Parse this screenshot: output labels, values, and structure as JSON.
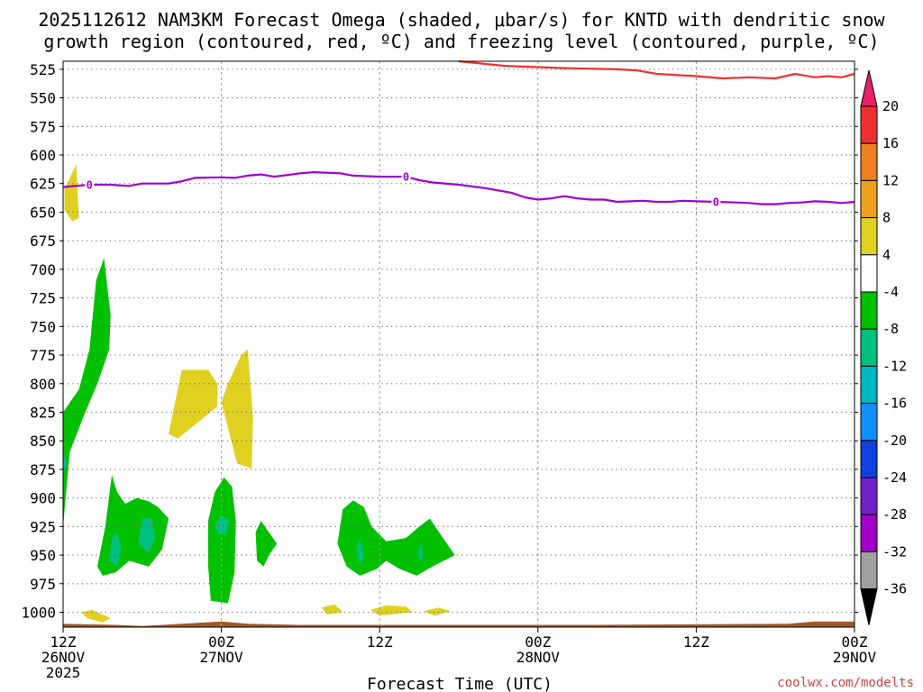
{
  "chart_data": {
    "type": "heatmap",
    "title_line1": "2025112612 NAM3KM Forecast Omega (shaded, μbar/s) for KNTD with dendritic snow",
    "title_line2": "growth region (contoured, red, ºC) and freezing level (contoured, purple, ºC)",
    "xlabel": "Forecast Time (UTC)",
    "credit": "coolwx.com/modelts",
    "y_axis": {
      "ticks": [
        525,
        550,
        575,
        600,
        625,
        650,
        675,
        700,
        725,
        750,
        775,
        800,
        825,
        850,
        875,
        900,
        925,
        950,
        975,
        1000
      ],
      "ylim": [
        518,
        1013
      ],
      "grid": true
    },
    "x_axis": {
      "xlim": [
        0,
        60
      ],
      "ticks": [
        {
          "hour": 0,
          "l1": "12Z",
          "l2": "26NOV",
          "l3": "2025"
        },
        {
          "hour": 12,
          "l1": "00Z",
          "l2": "27NOV",
          "l3": ""
        },
        {
          "hour": 24,
          "l1": "12Z",
          "l2": "",
          "l3": ""
        },
        {
          "hour": 36,
          "l1": "00Z",
          "l2": "28NOV",
          "l3": ""
        },
        {
          "hour": 48,
          "l1": "12Z",
          "l2": "",
          "l3": ""
        },
        {
          "hour": 60,
          "l1": "00Z",
          "l2": "29NOV",
          "l3": ""
        }
      ],
      "grid": true
    },
    "colorbar": {
      "labels": [
        "20",
        "16",
        "12",
        "8",
        "4",
        "-4",
        "-8",
        "-12",
        "-16",
        "-20",
        "-24",
        "-28",
        "-32",
        "-36"
      ],
      "bins": [
        {
          "color": "#e8206b"
        },
        {
          "color": "#f03030"
        },
        {
          "color": "#f08020"
        },
        {
          "color": "#f0a020"
        },
        {
          "color": "#e0d020"
        },
        {
          "color": "#ffffff"
        },
        {
          "color": "#00c000"
        },
        {
          "color": "#00c080"
        },
        {
          "color": "#00b8c0"
        },
        {
          "color": "#1090ff"
        },
        {
          "color": "#1040e0"
        },
        {
          "color": "#7020c8"
        },
        {
          "color": "#a000c8"
        },
        {
          "color": "#a0a0a0"
        },
        {
          "color": "#000000"
        }
      ]
    },
    "series": [
      {
        "kind": "contour",
        "color": "#f03030",
        "points": [
          [
            30,
            518
          ],
          [
            33.5,
            522
          ],
          [
            38,
            524
          ],
          [
            42,
            525
          ],
          [
            43.5,
            526
          ],
          [
            45,
            529
          ],
          [
            48,
            531
          ],
          [
            50,
            533
          ],
          [
            52,
            532
          ],
          [
            54,
            533
          ],
          [
            55.5,
            529
          ],
          [
            57,
            532
          ],
          [
            58,
            531
          ],
          [
            59,
            532
          ],
          [
            60,
            529
          ]
        ]
      },
      {
        "kind": "contour",
        "color": "#9c00d0",
        "label": "0",
        "label_hours": [
          2,
          26,
          49.5
        ],
        "points": [
          [
            0,
            628
          ],
          [
            2,
            626
          ],
          [
            3.5,
            626
          ],
          [
            5,
            627
          ],
          [
            6,
            625
          ],
          [
            8,
            625
          ],
          [
            9,
            623
          ],
          [
            10,
            620
          ],
          [
            12,
            619.5
          ],
          [
            13,
            620
          ],
          [
            14,
            618
          ],
          [
            15,
            617
          ],
          [
            16,
            619
          ],
          [
            18,
            616
          ],
          [
            19,
            615
          ],
          [
            21,
            616
          ],
          [
            22,
            618
          ],
          [
            24,
            619
          ],
          [
            26,
            619
          ],
          [
            27,
            622
          ],
          [
            28,
            624
          ],
          [
            30,
            626
          ],
          [
            32,
            629
          ],
          [
            34,
            633
          ],
          [
            35,
            637
          ],
          [
            36,
            639
          ],
          [
            37,
            638
          ],
          [
            38,
            636
          ],
          [
            39,
            638
          ],
          [
            40,
            639
          ],
          [
            41,
            639
          ],
          [
            42,
            641
          ],
          [
            43,
            640.5
          ],
          [
            44,
            640
          ],
          [
            45,
            641
          ],
          [
            46,
            641
          ],
          [
            47,
            640
          ],
          [
            48,
            640.5
          ],
          [
            49.5,
            641
          ],
          [
            51,
            641.5
          ],
          [
            52,
            642
          ],
          [
            53,
            643
          ],
          [
            54,
            643
          ],
          [
            55,
            642
          ],
          [
            56,
            641.5
          ],
          [
            57,
            640.5
          ],
          [
            58,
            641
          ],
          [
            59,
            642
          ],
          [
            60,
            641
          ]
        ]
      }
    ],
    "regions": [
      {
        "level": "4",
        "color": "#e0d020",
        "points": [
          [
            0.1,
            630
          ],
          [
            1.0,
            608
          ],
          [
            1.1,
            633
          ],
          [
            1.2,
            655
          ],
          [
            0.7,
            658
          ],
          [
            0.1,
            648
          ]
        ]
      },
      {
        "level": "4",
        "color": "#e0d020",
        "points": [
          [
            8.0,
            844
          ],
          [
            9.0,
            788
          ],
          [
            11.0,
            788
          ],
          [
            11.7,
            800
          ],
          [
            11.7,
            820
          ],
          [
            10.0,
            836
          ],
          [
            8.7,
            848
          ]
        ]
      },
      {
        "level": "4",
        "color": "#e0d020",
        "points": [
          [
            12.0,
            816
          ],
          [
            12.5,
            800
          ],
          [
            13.5,
            775
          ],
          [
            14.0,
            770
          ],
          [
            14.4,
            830
          ],
          [
            14.3,
            874
          ],
          [
            13.2,
            870
          ]
        ]
      },
      {
        "level": "4",
        "color": "#e0d020",
        "points": [
          [
            1.4,
            1000
          ],
          [
            2.2,
            998
          ],
          [
            3.6,
            1005
          ],
          [
            3.0,
            1009
          ],
          [
            1.8,
            1005
          ]
        ]
      },
      {
        "level": "4",
        "color": "#e0d020",
        "points": [
          [
            19.6,
            996
          ],
          [
            20.6,
            993
          ],
          [
            21.2,
            1000
          ],
          [
            20.0,
            1002
          ]
        ]
      },
      {
        "level": "4",
        "color": "#e0d020",
        "points": [
          [
            23.3,
            998
          ],
          [
            24.5,
            994
          ],
          [
            26.0,
            995
          ],
          [
            26.5,
            1000
          ],
          [
            24.0,
            1003
          ]
        ]
      },
      {
        "level": "4",
        "color": "#e0d020",
        "points": [
          [
            27.3,
            999
          ],
          [
            28.5,
            996
          ],
          [
            29.4,
            999
          ],
          [
            28.2,
            1003
          ]
        ]
      },
      {
        "level": "-4",
        "color": "#00c000",
        "points": [
          [
            0.0,
            825
          ],
          [
            1.2,
            805
          ],
          [
            2.0,
            770
          ],
          [
            2.5,
            710
          ],
          [
            3.1,
            690
          ],
          [
            3.6,
            740
          ],
          [
            3.5,
            770
          ],
          [
            2.6,
            800
          ],
          [
            1.5,
            830
          ],
          [
            0.5,
            860
          ],
          [
            0.0,
            925
          ],
          [
            0.0,
            900
          ]
        ]
      },
      {
        "level": "-4",
        "color": "#00c000",
        "points": [
          [
            2.6,
            960
          ],
          [
            3.2,
            925
          ],
          [
            3.7,
            880
          ],
          [
            4.1,
            895
          ],
          [
            4.7,
            905
          ],
          [
            5.6,
            900
          ],
          [
            6.5,
            903
          ],
          [
            7.2,
            908
          ],
          [
            8.0,
            918
          ],
          [
            7.5,
            945
          ],
          [
            6.5,
            960
          ],
          [
            5.0,
            955
          ],
          [
            4.0,
            965
          ],
          [
            3.0,
            968
          ]
        ]
      },
      {
        "level": "-4",
        "color": "#00c000",
        "points": [
          [
            11.0,
            920
          ],
          [
            11.5,
            895
          ],
          [
            12.2,
            882
          ],
          [
            12.8,
            890
          ],
          [
            13.1,
            920
          ],
          [
            13.0,
            965
          ],
          [
            12.5,
            992
          ],
          [
            11.2,
            990
          ],
          [
            11.0,
            960
          ]
        ]
      },
      {
        "level": "-4",
        "color": "#00c000",
        "points": [
          [
            14.6,
            930
          ],
          [
            15.0,
            920
          ],
          [
            16.2,
            940
          ],
          [
            15.6,
            950
          ],
          [
            15.2,
            960
          ],
          [
            14.7,
            955
          ]
        ]
      },
      {
        "level": "-4",
        "color": "#00c000",
        "points": [
          [
            20.8,
            940
          ],
          [
            21.2,
            910
          ],
          [
            22.0,
            902
          ],
          [
            22.8,
            908
          ],
          [
            23.4,
            925
          ],
          [
            24.5,
            938
          ],
          [
            26.0,
            935
          ],
          [
            27.0,
            925
          ],
          [
            27.8,
            918
          ],
          [
            28.8,
            935
          ],
          [
            29.7,
            950
          ],
          [
            28.0,
            960
          ],
          [
            26.8,
            968
          ],
          [
            25.5,
            962
          ],
          [
            24.5,
            955
          ],
          [
            23.8,
            962
          ],
          [
            22.5,
            968
          ],
          [
            21.5,
            960
          ]
        ]
      },
      {
        "level": "-8",
        "color": "#00c080",
        "points": [
          [
            3.5,
            955
          ],
          [
            3.7,
            935
          ],
          [
            4.1,
            930
          ],
          [
            4.4,
            945
          ],
          [
            4.1,
            960
          ]
        ]
      },
      {
        "level": "-8",
        "color": "#00c080",
        "points": [
          [
            5.7,
            940
          ],
          [
            6.0,
            918
          ],
          [
            6.7,
            918
          ],
          [
            7.0,
            935
          ],
          [
            6.5,
            948
          ]
        ]
      },
      {
        "level": "-8",
        "color": "#00c080",
        "points": [
          [
            11.5,
            925
          ],
          [
            12.0,
            915
          ],
          [
            12.6,
            920
          ],
          [
            12.4,
            930
          ],
          [
            11.8,
            932
          ]
        ]
      },
      {
        "level": "-8",
        "color": "#00c080",
        "points": [
          [
            22.2,
            945
          ],
          [
            22.5,
            935
          ],
          [
            22.8,
            950
          ],
          [
            22.5,
            958
          ]
        ]
      },
      {
        "level": "-8",
        "color": "#00c080",
        "points": [
          [
            26.9,
            948
          ],
          [
            27.1,
            940
          ],
          [
            27.3,
            950
          ],
          [
            27.1,
            956
          ]
        ]
      },
      {
        "level": "-12",
        "color": "#00b8c0",
        "points": [
          [
            0.0,
            862
          ],
          [
            0.25,
            868
          ],
          [
            0.0,
            880
          ]
        ]
      }
    ],
    "terrain": {
      "color": "#a05a2c",
      "top": [
        [
          0,
          1010
        ],
        [
          4,
          1011
        ],
        [
          6,
          1012
        ],
        [
          9,
          1010
        ],
        [
          12,
          1008
        ],
        [
          14,
          1010
        ],
        [
          18,
          1011
        ],
        [
          30,
          1011
        ],
        [
          40,
          1011
        ],
        [
          55,
          1010
        ],
        [
          57,
          1008
        ],
        [
          60,
          1008
        ]
      ]
    }
  }
}
